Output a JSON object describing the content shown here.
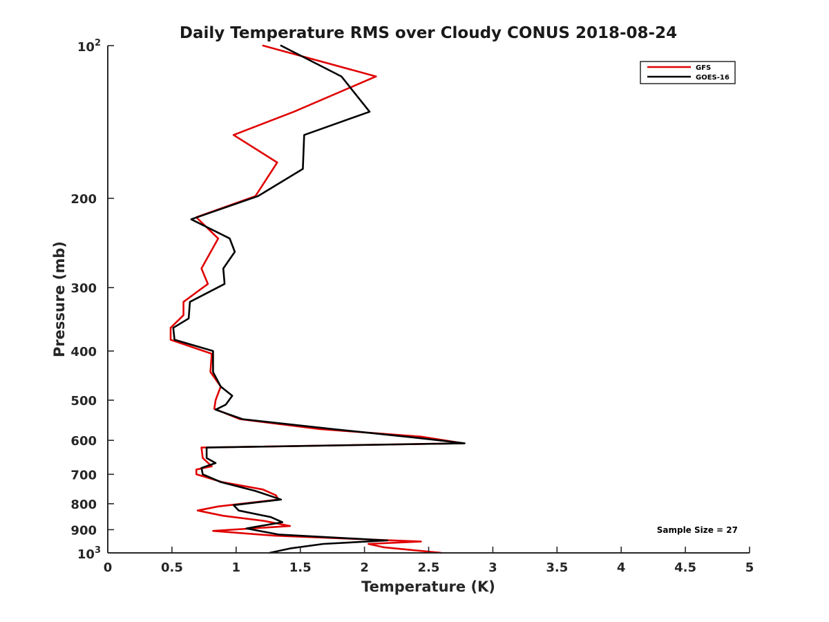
{
  "chart_data": {
    "type": "line",
    "title": "Daily Temperature RMS over Cloudy CONUS 2018-08-24",
    "xlabel": "Temperature (K)",
    "ylabel": "Pressure (mb)",
    "xlim": [
      0,
      5
    ],
    "ylim": [
      100,
      1000
    ],
    "y_scale": "log",
    "y_reversed": true,
    "grid": false,
    "legend_position": "top-right",
    "x_ticks": [
      "0",
      "0.5",
      "1",
      "1.5",
      "2",
      "2.5",
      "3",
      "3.5",
      "4",
      "4.5",
      "5"
    ],
    "y_ticks": [
      {
        "value": 100,
        "base": "10",
        "exp": "2"
      },
      {
        "value": 200,
        "label": "200"
      },
      {
        "value": 300,
        "label": "300"
      },
      {
        "value": 400,
        "label": "400"
      },
      {
        "value": 500,
        "label": "500"
      },
      {
        "value": 600,
        "label": "600"
      },
      {
        "value": 700,
        "label": "700"
      },
      {
        "value": 800,
        "label": "800"
      },
      {
        "value": 900,
        "label": "900"
      },
      {
        "value": 1000,
        "base": "10",
        "exp": "3"
      }
    ],
    "annotation": "Sample Size = 27",
    "series": [
      {
        "name": "GFS",
        "color": "#e00000",
        "points": [
          [
            1.21,
            100
          ],
          [
            2.09,
            115
          ],
          [
            1.45,
            135
          ],
          [
            0.98,
            150
          ],
          [
            1.32,
            170
          ],
          [
            1.15,
            198
          ],
          [
            0.69,
            218
          ],
          [
            0.86,
            240
          ],
          [
            0.73,
            275
          ],
          [
            0.78,
            295
          ],
          [
            0.59,
            320
          ],
          [
            0.59,
            340
          ],
          [
            0.49,
            360
          ],
          [
            0.49,
            380
          ],
          [
            0.81,
            405
          ],
          [
            0.8,
            440
          ],
          [
            0.88,
            470
          ],
          [
            0.84,
            500
          ],
          [
            0.83,
            520
          ],
          [
            1.03,
            545
          ],
          [
            1.65,
            570
          ],
          [
            2.44,
            590
          ],
          [
            2.77,
            608
          ],
          [
            0.73,
            620
          ],
          [
            0.74,
            650
          ],
          [
            0.81,
            675
          ],
          [
            0.69,
            685
          ],
          [
            0.69,
            700
          ],
          [
            0.89,
            725
          ],
          [
            1.21,
            750
          ],
          [
            1.31,
            770
          ],
          [
            1.33,
            785
          ],
          [
            0.86,
            810
          ],
          [
            0.7,
            825
          ],
          [
            0.9,
            845
          ],
          [
            1.22,
            865
          ],
          [
            1.42,
            885
          ],
          [
            0.82,
            905
          ],
          [
            1.3,
            925
          ],
          [
            2.44,
            950
          ],
          [
            2.03,
            960
          ],
          [
            2.15,
            975
          ],
          [
            2.6,
            1000
          ]
        ]
      },
      {
        "name": "GOES-16",
        "color": "#000000",
        "points": [
          [
            1.35,
            100
          ],
          [
            1.82,
            115
          ],
          [
            2.04,
            135
          ],
          [
            1.53,
            150
          ],
          [
            1.52,
            175
          ],
          [
            1.17,
            198
          ],
          [
            0.65,
            220
          ],
          [
            0.95,
            240
          ],
          [
            0.99,
            255
          ],
          [
            0.9,
            275
          ],
          [
            0.91,
            295
          ],
          [
            0.64,
            320
          ],
          [
            0.63,
            345
          ],
          [
            0.51,
            360
          ],
          [
            0.52,
            380
          ],
          [
            0.82,
            400
          ],
          [
            0.82,
            440
          ],
          [
            0.88,
            470
          ],
          [
            0.97,
            490
          ],
          [
            0.92,
            510
          ],
          [
            0.84,
            522
          ],
          [
            1.05,
            545
          ],
          [
            1.75,
            570
          ],
          [
            2.38,
            592
          ],
          [
            2.78,
            608
          ],
          [
            0.77,
            620
          ],
          [
            0.77,
            650
          ],
          [
            0.84,
            665
          ],
          [
            0.73,
            680
          ],
          [
            0.74,
            700
          ],
          [
            0.88,
            725
          ],
          [
            1.15,
            755
          ],
          [
            1.35,
            785
          ],
          [
            0.98,
            805
          ],
          [
            1.02,
            825
          ],
          [
            1.27,
            850
          ],
          [
            1.36,
            870
          ],
          [
            1.08,
            895
          ],
          [
            1.33,
            920
          ],
          [
            2.18,
            945
          ],
          [
            1.68,
            960
          ],
          [
            1.42,
            980
          ],
          [
            1.26,
            1000
          ]
        ]
      }
    ]
  }
}
